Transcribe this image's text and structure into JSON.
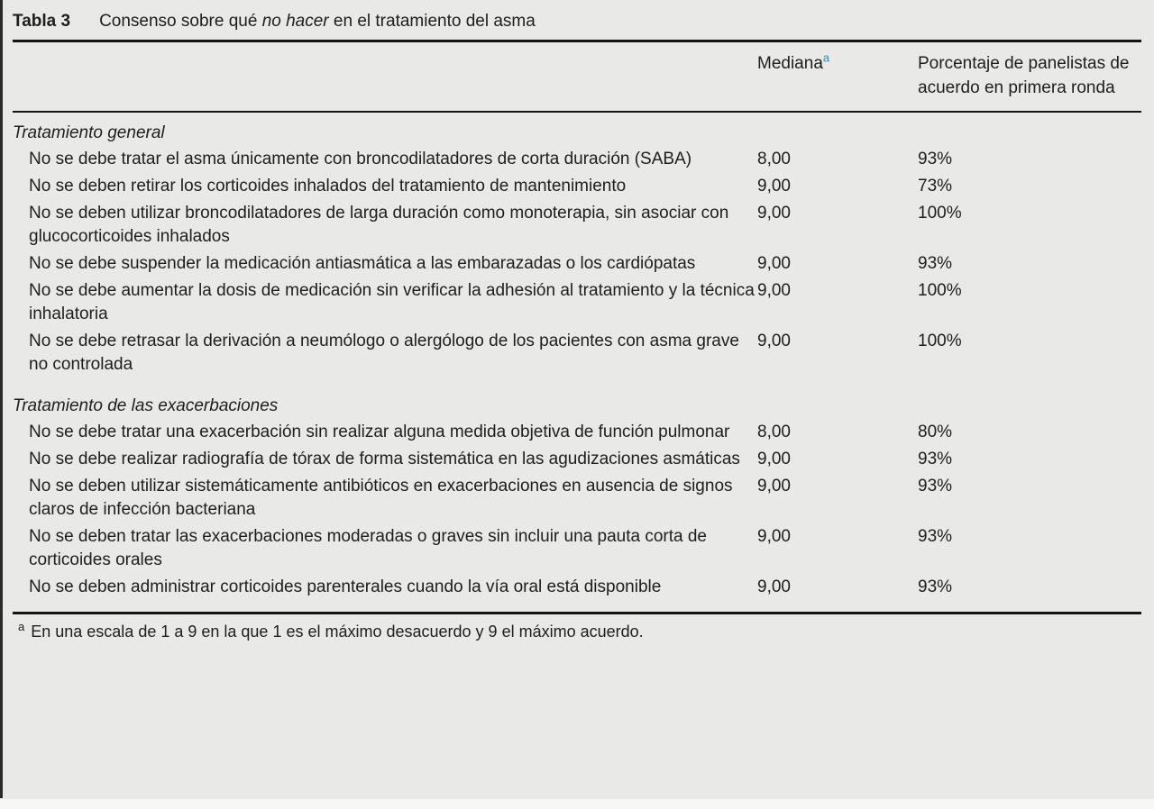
{
  "table": {
    "label": "Tabla 3",
    "title": {
      "prefix": "Consenso sobre qué ",
      "em": "no hacer",
      "suffix": " en el tratamiento del asma"
    },
    "columns": {
      "median_label": "Mediana",
      "median_footnote_marker": "a",
      "pct_label": "Porcentaje de panelistas de acuerdo en primera ronda"
    },
    "sections": [
      {
        "heading": "Tratamiento general",
        "rows": [
          {
            "text": "No se debe tratar el asma únicamente con broncodilatadores de corta duración (SABA)",
            "median": "8,00",
            "pct": "93%"
          },
          {
            "text": "No se deben retirar los corticoides inhalados del tratamiento de mantenimiento",
            "median": "9,00",
            "pct": "73%"
          },
          {
            "text": "No se deben utilizar broncodilatadores de larga duración como monoterapia, sin asociar con glucocorticoides inhalados",
            "median": "9,00",
            "pct": "100%"
          },
          {
            "text": "No se debe suspender la medicación antiasmática a las embarazadas o los cardiópatas",
            "median": "9,00",
            "pct": "93%"
          },
          {
            "text": "No se debe aumentar la dosis de medicación sin verificar la adhesión al tratamiento y la técnica inhalatoria",
            "median": "9,00",
            "pct": "100%"
          },
          {
            "text": "No se debe retrasar la derivación a neumólogo o alergólogo de los pacientes con asma grave no controlada",
            "median": "9,00",
            "pct": "100%"
          }
        ]
      },
      {
        "heading": "Tratamiento de las exacerbaciones",
        "rows": [
          {
            "text": "No se debe tratar una exacerbación sin realizar alguna medida objetiva de función pulmonar",
            "median": "8,00",
            "pct": "80%"
          },
          {
            "text": "No se debe realizar radiografía de tórax de forma sistemática en las agudizaciones asmáticas",
            "median": "9,00",
            "pct": "93%"
          },
          {
            "text": "No se deben utilizar sistemáticamente antibióticos en exacerbaciones en ausencia de signos claros de infección bacteriana",
            "median": "9,00",
            "pct": "93%"
          },
          {
            "text": "No se deben tratar las exacerbaciones moderadas o graves sin incluir una pauta corta de corticoides orales",
            "median": "9,00",
            "pct": "93%"
          },
          {
            "text": "No se deben administrar corticoides parenterales cuando la vía oral está disponible",
            "median": "9,00",
            "pct": "93%"
          }
        ]
      }
    ],
    "footnote": {
      "marker": "a",
      "text": "En una escala de 1 a 9 en la que 1 es el máximo desacuerdo y 9 el máximo acuerdo."
    }
  },
  "colors": {
    "background": "#e9e9e7",
    "text": "#1e1e1e",
    "rule": "#141414",
    "footnote_marker_blue": "#2d8fc0"
  }
}
